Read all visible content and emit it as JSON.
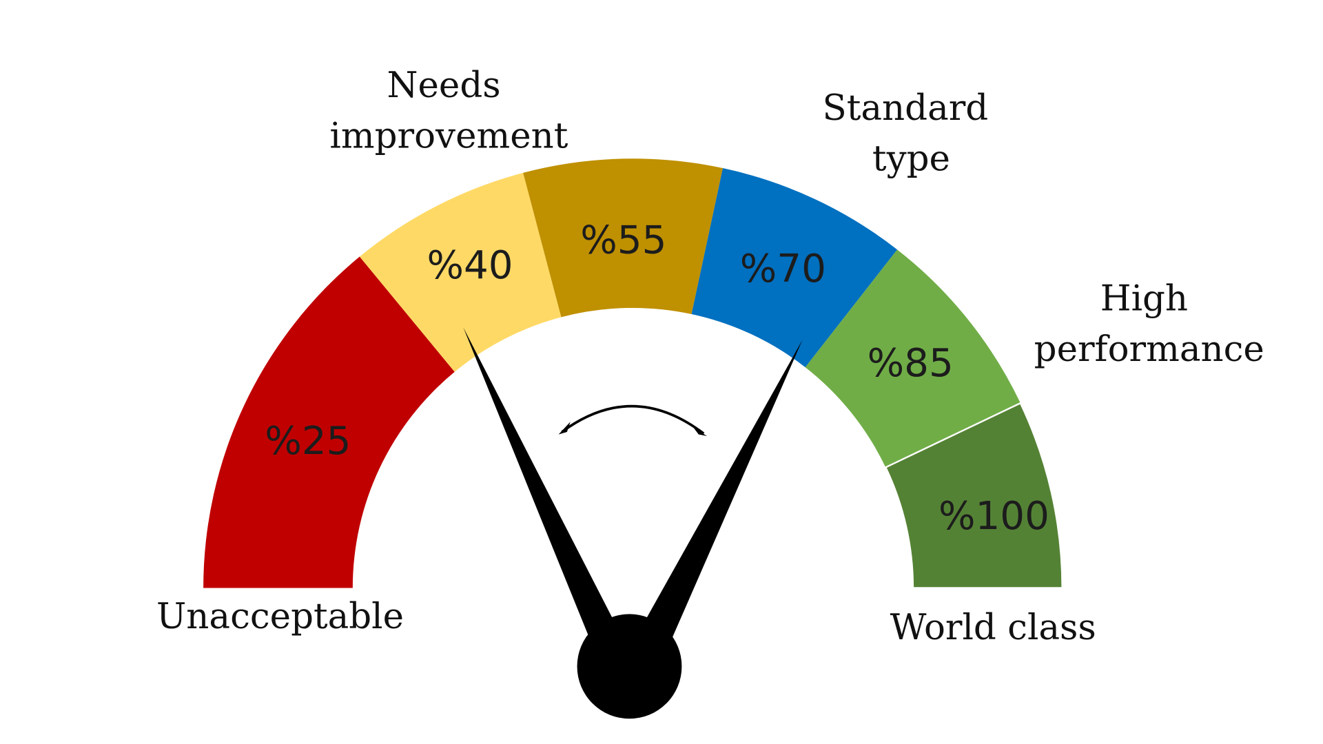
{
  "gauge": {
    "segments": [
      {
        "label": "%25",
        "color": "#c00000"
      },
      {
        "label": "%40",
        "color": "#ffd966"
      },
      {
        "label": "%55",
        "color": "#bf9000"
      },
      {
        "label": "%70",
        "color": "#0070c0"
      },
      {
        "label": "%85",
        "color": "#70ad47"
      },
      {
        "label": "%100",
        "color": "#548235"
      }
    ],
    "categories": {
      "unacceptable": "Unacceptable",
      "needs_improvement_1": "Needs",
      "needs_improvement_2": "improvement",
      "standard_1": "Standard",
      "standard_2": "type",
      "high_1": "High",
      "high_2": "performance",
      "world_class": "World class"
    },
    "needle_color": "#000000"
  }
}
